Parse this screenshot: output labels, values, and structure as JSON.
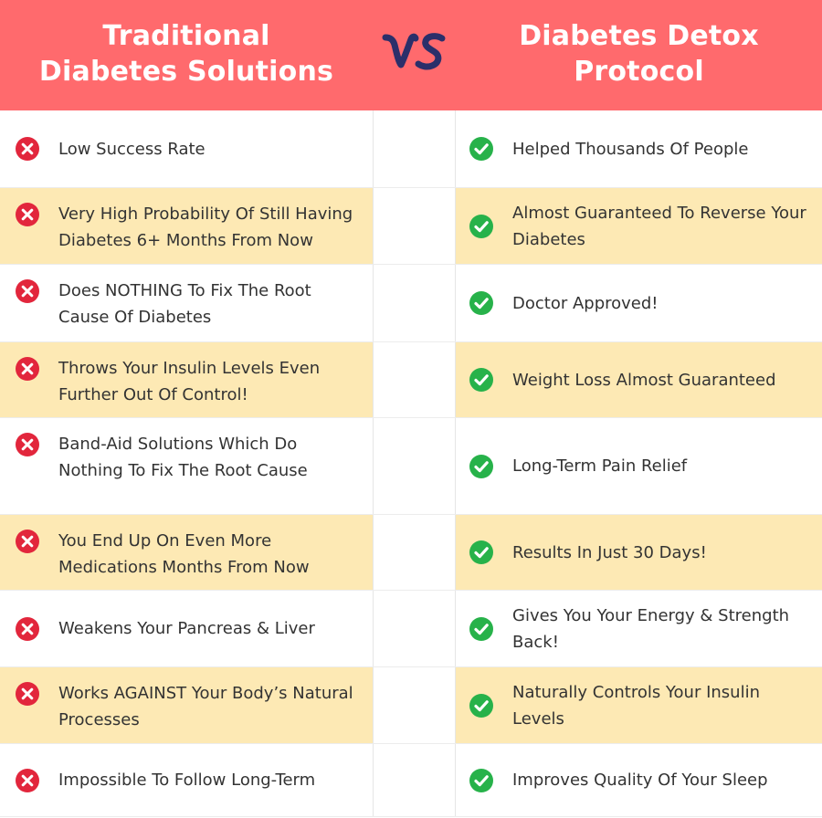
{
  "header": {
    "left_title_line1": "Traditional",
    "left_title_line2": "Diabetes Solutions",
    "vs_label": "VS",
    "right_title_line1": "Diabetes Detox",
    "right_title_line2": "Protocol"
  },
  "colors": {
    "header_bg": "#ff6a6d",
    "vs_color": "#2b2f6a",
    "alt_row_bg": "#fde9b4",
    "cross_red": "#e2263c",
    "check_green": "#27b24a"
  },
  "rows": [
    {
      "left": "Low Success Rate",
      "right": "Helped Thousands Of People"
    },
    {
      "left": "Very High Probability Of Still Having Diabetes 6+ Months From Now",
      "right": "Almost Guaranteed To Reverse Your Diabetes"
    },
    {
      "left": "Does NOTHING To Fix The Root Cause Of Diabetes",
      "right": "Doctor Approved!"
    },
    {
      "left": "Throws Your Insulin Levels Even Further Out Of Control!",
      "right": "Weight Loss Almost Guaranteed"
    },
    {
      "left": "Band-Aid Solutions Which Do Nothing To Fix The Root Cause",
      "right": "Long-Term Pain Relief"
    },
    {
      "left": "You End Up On Even More Medications Months From Now",
      "right": "Results In Just 30 Days!"
    },
    {
      "left": "Weakens Your Pancreas & Liver",
      "right": "Gives You Your Energy & Strength Back!"
    },
    {
      "left": "Works AGAINST Your Body’s Natural Processes",
      "right": "Naturally Controls Your Insulin Levels"
    },
    {
      "left": "Impossible To Follow Long-Term",
      "right": "Improves Quality Of Your Sleep"
    }
  ],
  "icons": {
    "left": "cross-circle-icon",
    "right": "check-circle-icon"
  }
}
